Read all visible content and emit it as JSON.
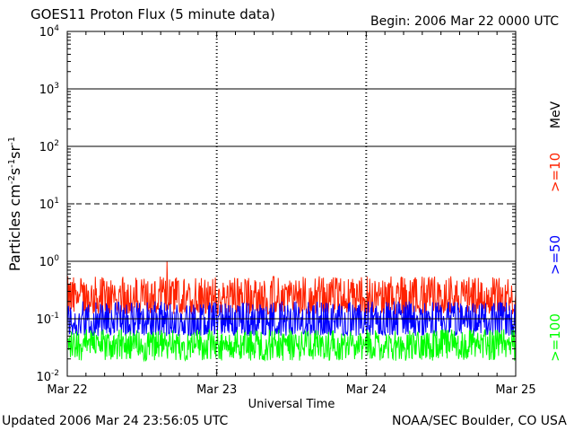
{
  "header": {
    "title": "GOES11 Proton Flux (5 minute data)",
    "begin": "Begin: 2006 Mar 22 0000 UTC"
  },
  "footer": {
    "updated": "Updated 2006 Mar 24 23:56:05 UTC",
    "credit": "NOAA/SEC Boulder, CO USA"
  },
  "chart_data": {
    "type": "line",
    "title": "GOES11 Proton Flux (5 minute data)",
    "xlabel": "Universal Time",
    "ylabel_parts": [
      "Particles cm",
      "-2",
      "s",
      "-1",
      "sr",
      "-1"
    ],
    "y_scale": "log",
    "ylim": [
      0.01,
      10000
    ],
    "y_ticks": [
      {
        "base": "10",
        "exp": "-2",
        "value": 0.01
      },
      {
        "base": "10",
        "exp": "-1",
        "value": 0.1
      },
      {
        "base": "10",
        "exp": "0",
        "value": 1
      },
      {
        "base": "10",
        "exp": "1",
        "value": 10
      },
      {
        "base": "10",
        "exp": "2",
        "value": 100
      },
      {
        "base": "10",
        "exp": "3",
        "value": 1000
      },
      {
        "base": "10",
        "exp": "4",
        "value": 10000
      }
    ],
    "x_ticks": [
      "Mar 22",
      "Mar 23",
      "Mar 24",
      "Mar 25"
    ],
    "xlim": [
      "2006-03-22T00:00Z",
      "2006-03-25T00:00Z"
    ],
    "reference_lines": [
      {
        "y": 1000,
        "style": "solid"
      },
      {
        "y": 100,
        "style": "solid"
      },
      {
        "y": 10,
        "style": "dashed"
      },
      {
        "y": 1,
        "style": "solid"
      },
      {
        "y": 0.1,
        "style": "solid"
      }
    ],
    "unit_label": "MeV",
    "series": [
      {
        "name": ">=10",
        "color": "#ff2200",
        "typical": 0.22,
        "peak": {
          "x": "2006-03-22T16:00Z",
          "y": 1.0
        }
      },
      {
        "name": ">=50",
        "color": "#0000ff",
        "typical": 0.09
      },
      {
        "name": ">=100",
        "color": "#00ff00",
        "typical": 0.035
      }
    ]
  }
}
